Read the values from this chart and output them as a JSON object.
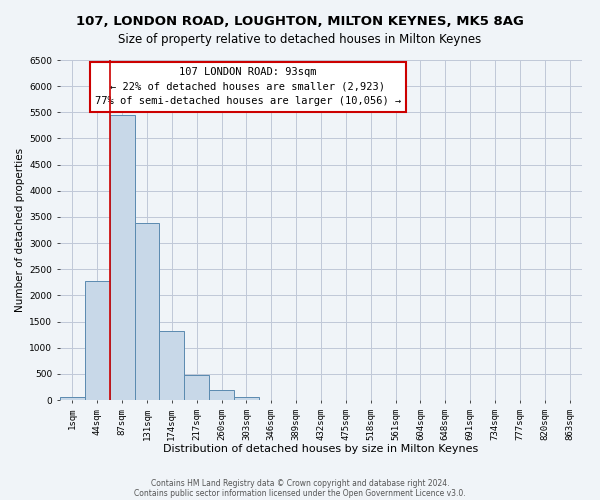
{
  "title": "107, LONDON ROAD, LOUGHTON, MILTON KEYNES, MK5 8AG",
  "subtitle": "Size of property relative to detached houses in Milton Keynes",
  "xlabel": "Distribution of detached houses by size in Milton Keynes",
  "ylabel": "Number of detached properties",
  "footer_line1": "Contains HM Land Registry data © Crown copyright and database right 2024.",
  "footer_line2": "Contains public sector information licensed under the Open Government Licence v3.0.",
  "bar_labels": [
    "1sqm",
    "44sqm",
    "87sqm",
    "131sqm",
    "174sqm",
    "217sqm",
    "260sqm",
    "303sqm",
    "346sqm",
    "389sqm",
    "432sqm",
    "475sqm",
    "518sqm",
    "561sqm",
    "604sqm",
    "648sqm",
    "691sqm",
    "734sqm",
    "777sqm",
    "820sqm",
    "863sqm"
  ],
  "bar_values": [
    55,
    2270,
    5450,
    3380,
    1310,
    480,
    185,
    65,
    0,
    0,
    0,
    0,
    0,
    0,
    0,
    0,
    0,
    0,
    0,
    0,
    0
  ],
  "bar_color": "#c8d8e8",
  "bar_edge_color": "#5a8ab0",
  "grid_color": "#c0c8d8",
  "background_color": "#f0f4f8",
  "annotation_box_color": "#ffffff",
  "annotation_border_color": "#cc0000",
  "property_line_color": "#cc0000",
  "property_bin_index": 2,
  "annotation_title": "107 LONDON ROAD: 93sqm",
  "annotation_line2": "← 22% of detached houses are smaller (2,923)",
  "annotation_line3": "77% of semi-detached houses are larger (10,056) →",
  "ylim": [
    0,
    6500
  ],
  "yticks": [
    0,
    500,
    1000,
    1500,
    2000,
    2500,
    3000,
    3500,
    4000,
    4500,
    5000,
    5500,
    6000,
    6500
  ],
  "title_fontsize": 9.5,
  "subtitle_fontsize": 8.5,
  "xlabel_fontsize": 8,
  "ylabel_fontsize": 7.5,
  "tick_fontsize": 6.5,
  "annotation_fontsize": 7.5,
  "footer_fontsize": 5.5
}
